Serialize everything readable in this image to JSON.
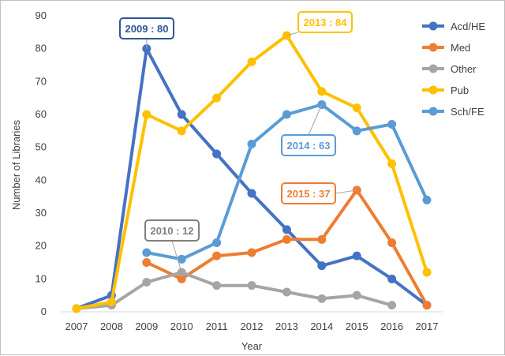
{
  "chart_data": {
    "type": "line",
    "title": "",
    "xlabel": "Year",
    "ylabel": "Number of Libraries",
    "ylim": [
      0,
      90
    ],
    "yticks": [
      0,
      10,
      20,
      30,
      40,
      50,
      60,
      70,
      80,
      90
    ],
    "grid": false,
    "legend_position": "right",
    "categories": [
      "2007",
      "2008",
      "2009",
      "2010",
      "2011",
      "2012",
      "2013",
      "2014",
      "2015",
      "2016",
      "2017"
    ],
    "series": [
      {
        "name": "Acd/HE",
        "color": "#4472C4",
        "values": [
          1,
          5,
          80,
          60,
          48,
          36,
          25,
          14,
          17,
          10,
          2
        ]
      },
      {
        "name": "Med",
        "color": "#ED7D31",
        "values": [
          null,
          null,
          15,
          10,
          17,
          18,
          22,
          22,
          37,
          21,
          2
        ]
      },
      {
        "name": "Other",
        "color": "#A5A5A5",
        "values": [
          1,
          2,
          9,
          12,
          8,
          8,
          6,
          4,
          5,
          2,
          null
        ]
      },
      {
        "name": "Pub",
        "color": "#FFC000",
        "values": [
          1,
          3,
          60,
          55,
          65,
          76,
          84,
          67,
          62,
          45,
          12
        ]
      },
      {
        "name": "Sch/FE",
        "color": "#5B9BD5",
        "values": [
          null,
          null,
          18,
          16,
          21,
          51,
          60,
          63,
          55,
          57,
          34
        ]
      }
    ],
    "annotations": [
      {
        "text": "2009 : 80",
        "series": "Acd/HE",
        "x": "2009",
        "y": 80,
        "color": "#2F5597"
      },
      {
        "text": "2013 : 84",
        "series": "Pub",
        "x": "2013",
        "y": 84,
        "color": "#FFC000"
      },
      {
        "text": "2014 : 63",
        "series": "Sch/FE",
        "x": "2014",
        "y": 63,
        "color": "#5B9BD5"
      },
      {
        "text": "2015 : 37",
        "series": "Med",
        "x": "2015",
        "y": 37,
        "color": "#ED7D31"
      },
      {
        "text": "2010 : 12",
        "series": "Other",
        "x": "2010",
        "y": 12,
        "color": "#7F7F7F"
      }
    ]
  }
}
